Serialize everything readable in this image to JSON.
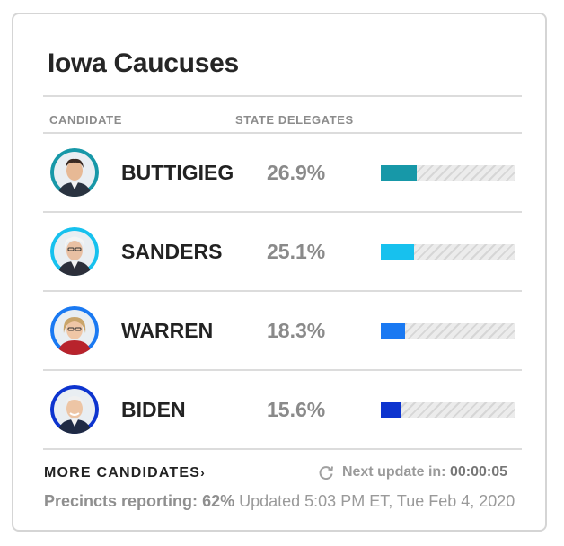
{
  "card": {
    "title": "Iowa Caucuses",
    "columns": {
      "candidate": "CANDIDATE",
      "state_delegates": "STATE DELEGATES"
    }
  },
  "candidates": [
    {
      "name": "BUTTIGIEG",
      "pct_label": "26.9%",
      "share": 26.9,
      "color": "#1798a8",
      "avatar_bg": "#1798a8",
      "icon": "buttigieg-avatar-icon"
    },
    {
      "name": "SANDERS",
      "pct_label": "25.1%",
      "share": 25.1,
      "color": "#17c1ee",
      "avatar_bg": "#17c1ee",
      "icon": "sanders-avatar-icon"
    },
    {
      "name": "WARREN",
      "pct_label": "18.3%",
      "share": 18.3,
      "color": "#1a79f2",
      "avatar_bg": "#1a79f2",
      "icon": "warren-avatar-icon"
    },
    {
      "name": "BIDEN",
      "pct_label": "15.6%",
      "share": 15.6,
      "color": "#0d34cf",
      "avatar_bg": "#0d34cf",
      "icon": "biden-avatar-icon"
    }
  ],
  "bar_max_share": 100,
  "more_candidates": {
    "label": "MORE CANDIDATES",
    "icon": "chevron-right-icon"
  },
  "next_update": {
    "label": "Next update in:",
    "value": "00:00:05",
    "icon": "refresh-icon"
  },
  "footer": {
    "precincts_label": "Precincts reporting:",
    "precincts_value": "62%",
    "updated": "Updated 5:03 PM ET, Tue Feb 4, 2020"
  }
}
